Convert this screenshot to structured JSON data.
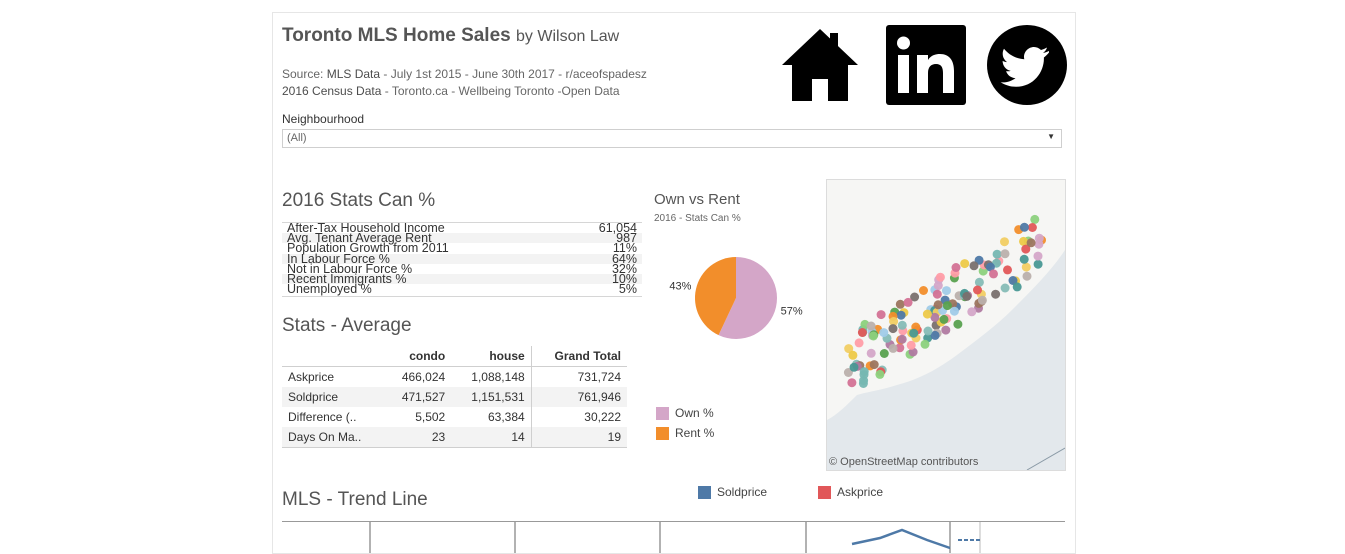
{
  "header": {
    "title_main": "Toronto MLS Home Sales",
    "title_by": "by Wilson Law",
    "source_line1_prefix": "Source: ",
    "source_line1_link": "MLS Data",
    "source_line1_rest": " - July 1st 2015 - June 30th 2017 - r/aceofspadesz",
    "source_line2_link": "2016 Census Data",
    "source_line2_rest": " - Toronto.ca - Wellbeing Toronto -Open Data",
    "icons": [
      "home-icon",
      "linkedin-icon",
      "twitter-icon"
    ]
  },
  "filter": {
    "label": "Neighbourhood",
    "value": "(All)"
  },
  "census": {
    "title": "2016 Stats Can %",
    "rows": [
      {
        "label": "After-Tax Household Income",
        "value": "61,054"
      },
      {
        "label": "Avg. Tenant Average Rent",
        "value": "987"
      },
      {
        "label": "Population Growth from 2011",
        "value": "11%"
      },
      {
        "label": "In Labour Force %",
        "value": "64%"
      },
      {
        "label": "Not in Labour Force %",
        "value": "32%"
      },
      {
        "label": "Recent Immigrants %",
        "value": "10%"
      },
      {
        "label": "Unemployed %",
        "value": "5%"
      }
    ]
  },
  "averages": {
    "title": "Stats - Average",
    "columns": [
      "condo",
      "house",
      "Grand Total"
    ],
    "rows": [
      {
        "label": "Askprice",
        "condo": "466,024",
        "house": "1,088,148",
        "total": "731,724"
      },
      {
        "label": "Soldprice",
        "condo": "471,527",
        "house": "1,151,531",
        "total": "761,946"
      },
      {
        "label": "Difference (..",
        "condo": "5,502",
        "house": "63,384",
        "total": "30,222"
      },
      {
        "label": "Days On Ma..",
        "condo": "23",
        "house": "14",
        "total": "19"
      }
    ]
  },
  "own_rent": {
    "title": "Own vs Rent",
    "subtitle": "2016 - Stats Can %",
    "legend": [
      {
        "label": "Own %",
        "color": "#d4a6c8"
      },
      {
        "label": "Rent %",
        "color": "#f28e2b"
      }
    ]
  },
  "chart_data": {
    "type": "pie",
    "title": "Own vs Rent",
    "subtitle": "2016 - Stats Can %",
    "slices": [
      {
        "label": "Own %",
        "value": 57,
        "color": "#d4a6c8"
      },
      {
        "label": "Rent %",
        "value": 43,
        "color": "#f28e2b"
      }
    ],
    "data_labels": [
      "57%",
      "43%"
    ]
  },
  "map": {
    "credit": "© OpenStreetMap contributors"
  },
  "trend": {
    "title": "MLS - Trend Line",
    "legend": [
      {
        "label": "Soldprice",
        "color": "#4e79a7"
      },
      {
        "label": "Askprice",
        "color": "#e15759"
      }
    ]
  }
}
